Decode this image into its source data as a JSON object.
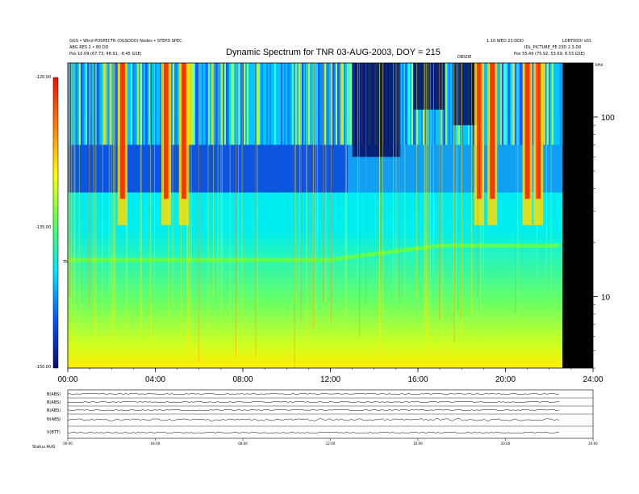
{
  "header": {
    "title": "Dynamic Spectrum for TNR 03-AUG-2003, DOY = 215",
    "top_left_line1": "GGS • Wind POSPECTR (DGSDDO) Nodes • STEPD SPEC",
    "top_left_line2": "ABG RES 2 • 80 DD",
    "top_left_line3": "Pos 10.09 (67.73, 48.91, -8.45 GSE)",
    "top_right_line1": "1.10 WED 23:DDD",
    "top_right_line2": "IDL_PICTURE_FE 23D 2.3.D0",
    "top_right_line3": "Pos 55.49 (75.92, 53.69, 8.53 GSE)",
    "top_right_corner": "LDBT00Dr s01",
    "unit_right": "kHz",
    "center_tag": "DBSDE"
  },
  "colorbar": {
    "label": "TNR",
    "ticks": [
      "-120.00",
      "-135.00",
      "-150.00"
    ]
  },
  "bottom": {
    "footer_left": "Status  AUG",
    "panel_labels": [
      "B(ABS)",
      "B(ABS)",
      "B(ABS)",
      "N(ABS)",
      "V(BTT)"
    ]
  },
  "chart_data": {
    "type": "heatmap",
    "title": "Dynamic Spectrum for TNR 03-AUG-2003, DOY = 215",
    "xlabel": "",
    "ylabel": "kHz",
    "x_ticks": [
      "00:00",
      "04:00",
      "08:00",
      "12:00",
      "16:00",
      "20:00",
      "24:00"
    ],
    "xlim": [
      0,
      24
    ],
    "y_scale": "log",
    "y_ticks": [
      10,
      100
    ],
    "ylim": [
      4,
      200
    ],
    "colorscale_range": [
      -150,
      -120
    ],
    "colorscale": [
      "#0b0b6e",
      "#0055ff",
      "#00e6ff",
      "#55ff55",
      "#ffff00",
      "#ff7f00",
      "#ee1100"
    ],
    "no_data_after_hour": 22.6,
    "features": [
      {
        "type": "noise_band",
        "freq_khz": 16,
        "note": "green/yellow emission line rising slightly mid-day"
      },
      {
        "type": "bursts",
        "hours": [
          2.5,
          4.5,
          5.3,
          18.8,
          19.4,
          21.0,
          21.5
        ]
      }
    ]
  }
}
